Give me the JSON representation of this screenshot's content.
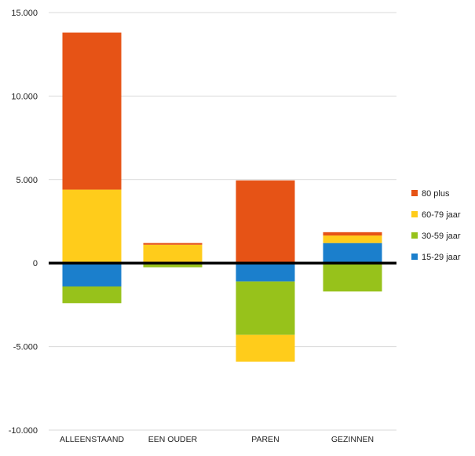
{
  "chart_data": {
    "type": "bar",
    "stacked": true,
    "categories": [
      "ALLEENSTAAND",
      "EEN OUDER",
      "PAREN",
      "GEZINNEN"
    ],
    "series": [
      {
        "name": "15-29 jaar",
        "color": "#1B7FCC",
        "values": [
          -1400,
          0,
          -1100,
          1200
        ]
      },
      {
        "name": "30-59 jaar",
        "color": "#97C21B",
        "values": [
          -1000,
          -250,
          -3200,
          -1700
        ]
      },
      {
        "name": "60-79 jaar",
        "color": "#FFCC1B",
        "values": [
          4400,
          1100,
          -1600,
          450
        ]
      },
      {
        "name": "80 plus",
        "color": "#E65316",
        "values": [
          9400,
          100,
          4950,
          200
        ]
      }
    ],
    "ylim": [
      -10000,
      15000
    ],
    "yticks": [
      -10000,
      -5000,
      0,
      5000,
      10000,
      15000
    ],
    "ytick_labels": [
      "-10.000",
      "-5.000",
      "0",
      "5.000",
      "10.000",
      "15.000"
    ],
    "grid": true,
    "legend_position": "right",
    "legend_order": [
      "80 plus",
      "60-79 jaar",
      "30-59 jaar",
      "15-29 jaar"
    ],
    "zero_line_color": "#000000",
    "title": "",
    "xlabel": "",
    "ylabel": ""
  }
}
